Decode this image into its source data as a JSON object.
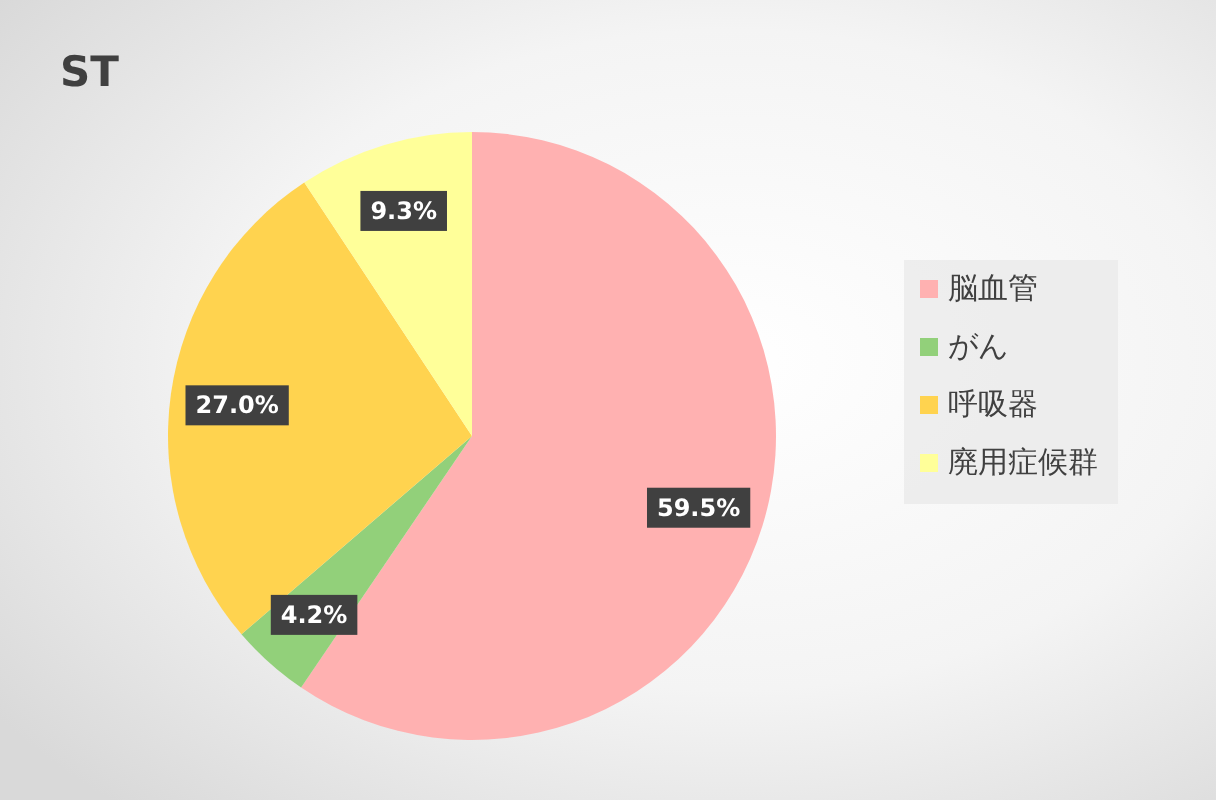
{
  "chart_data": {
    "type": "pie",
    "title": "ST",
    "categories": [
      "脳血管",
      "がん",
      "呼吸器",
      "廃用症候群"
    ],
    "values": [
      59.5,
      4.2,
      27.0,
      9.3
    ],
    "colors": [
      "#ffb1b1",
      "#92d07a",
      "#ffd34f",
      "#ffff99"
    ],
    "value_labels": [
      "59.5%",
      "4.2%",
      "27.0%",
      "9.3%"
    ],
    "legend": "right"
  }
}
